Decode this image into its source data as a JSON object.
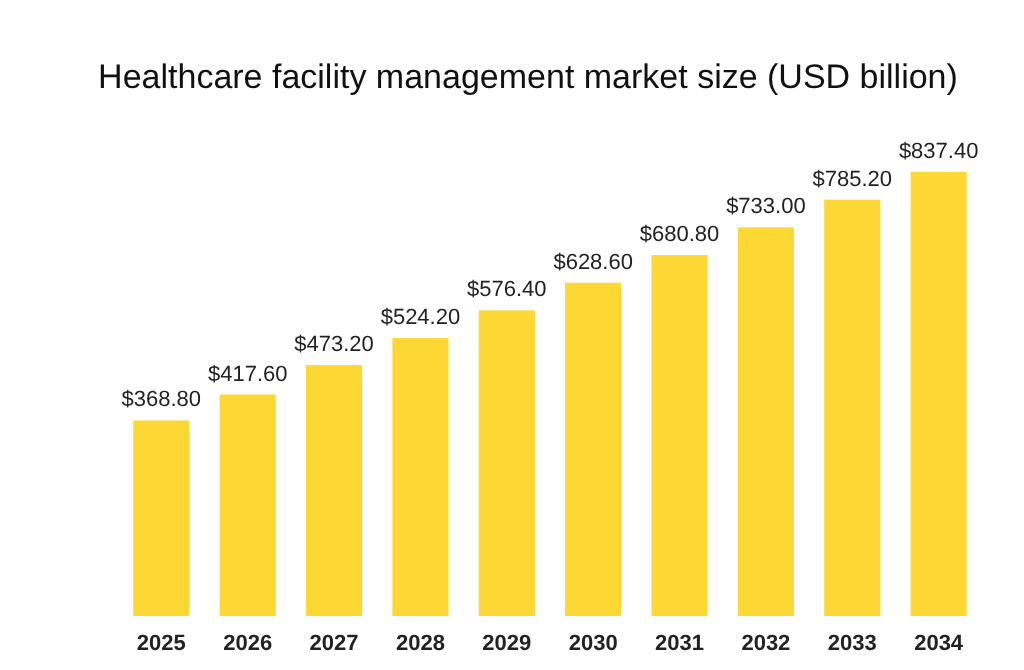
{
  "chart_data": {
    "type": "bar",
    "title": "Healthcare facility management market size (USD billion)",
    "categories": [
      "2025",
      "2026",
      "2027",
      "2028",
      "2029",
      "2030",
      "2031",
      "2032",
      "2033",
      "2034"
    ],
    "values": [
      368.8,
      417.6,
      473.2,
      524.2,
      576.4,
      628.6,
      680.8,
      733.0,
      785.2,
      837.4
    ],
    "value_labels": [
      "$368.80",
      "$417.60",
      "$473.20",
      "$524.20",
      "$576.40",
      "$628.60",
      "$680.80",
      "$733.00",
      "$785.20",
      "$837.40"
    ],
    "color": "#fdd835"
  }
}
